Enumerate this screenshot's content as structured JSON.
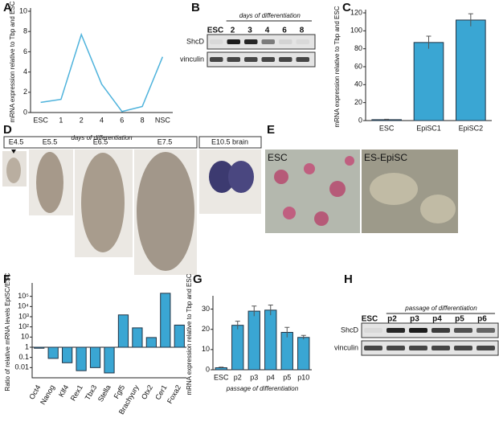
{
  "panel_letters": [
    "A",
    "B",
    "C",
    "D",
    "E",
    "F",
    "G",
    "H"
  ],
  "chart_data": [
    {
      "type": "line",
      "y_label": "mRNA expression relative to Tbp and ESC",
      "x_label": "days of differentiation",
      "categories": [
        "ESC",
        "1",
        "2",
        "4",
        "6",
        "8",
        "NSC"
      ],
      "values": [
        1.0,
        1.3,
        7.7,
        2.8,
        0.1,
        0.6,
        5.5
      ],
      "color": "#4fb3dc",
      "ylim": [
        0,
        10
      ],
      "yticks": [
        0,
        2,
        4,
        6,
        8,
        10
      ],
      "grid": false
    },
    {
      "type": "bar",
      "y_label": "mRNA expression relative to Tbp and ESC",
      "categories": [
        "ESC",
        "EpiSC1",
        "EpiSC2"
      ],
      "values": [
        1,
        87,
        112
      ],
      "errors": [
        0.5,
        7,
        7
      ],
      "color": "#3aa6d3",
      "ylim": [
        0,
        120
      ],
      "yticks": [
        0,
        20,
        40,
        60,
        80,
        100,
        120
      ],
      "grid": false
    },
    {
      "type": "bar",
      "y_label": "Ratio of relative mRNA levels EpiSC/ESC",
      "log_y": true,
      "categories": [
        "Oct4",
        "Nanog",
        "Klf4",
        "Rex1",
        "Tbx3",
        "Stella",
        "Fgf5",
        "Brachyury",
        "Otx2",
        "Cer1",
        "Foxa2"
      ],
      "values": [
        0.8,
        0.08,
        0.03,
        0.005,
        0.01,
        0.003,
        1500,
        80,
        9,
        200000,
        150
      ],
      "color": "#3aa6d3",
      "ylim": [
        0.001,
        1000000
      ],
      "yticks": [
        0.01,
        0.1,
        1,
        10,
        {
          "value": 100,
          "label": "10²"
        },
        {
          "value": 1000,
          "label": "10³"
        },
        {
          "value": 10000,
          "label": "10⁴"
        },
        {
          "value": 100000,
          "label": "10⁵"
        }
      ],
      "grid": false
    },
    {
      "type": "bar",
      "y_label": "mRNA expression relative to Tbp and ESC",
      "x_label": "passage of differentiation",
      "categories": [
        "ESC",
        "p2",
        "p3",
        "p4",
        "p5",
        "p10"
      ],
      "values": [
        1,
        22,
        29,
        29.5,
        18.5,
        16
      ],
      "errors": [
        0.3,
        2,
        2.5,
        2.5,
        2.5,
        1
      ],
      "color": "#3aa6d3",
      "ylim": [
        0,
        35
      ],
      "yticks": [
        0,
        10,
        20,
        30
      ],
      "grid": false
    }
  ],
  "blots": [
    {
      "caption": "days of differentiation",
      "lanes": [
        "ESC",
        "2",
        "3",
        "4",
        "6",
        "8"
      ],
      "rows": [
        "ShcD",
        "vinculin"
      ]
    },
    {
      "caption": "passage of differentiation",
      "lanes": [
        "ESC",
        "p2",
        "p3",
        "p4",
        "p5",
        "p6"
      ],
      "rows": [
        "ShcD",
        "vinculin"
      ]
    }
  ],
  "embryo_stages": [
    "E4.5",
    "E5.5",
    "E6.5",
    "E7.5",
    "E10.5 brain"
  ],
  "culture_labels": [
    "ESC",
    "ES-EpiSC"
  ]
}
